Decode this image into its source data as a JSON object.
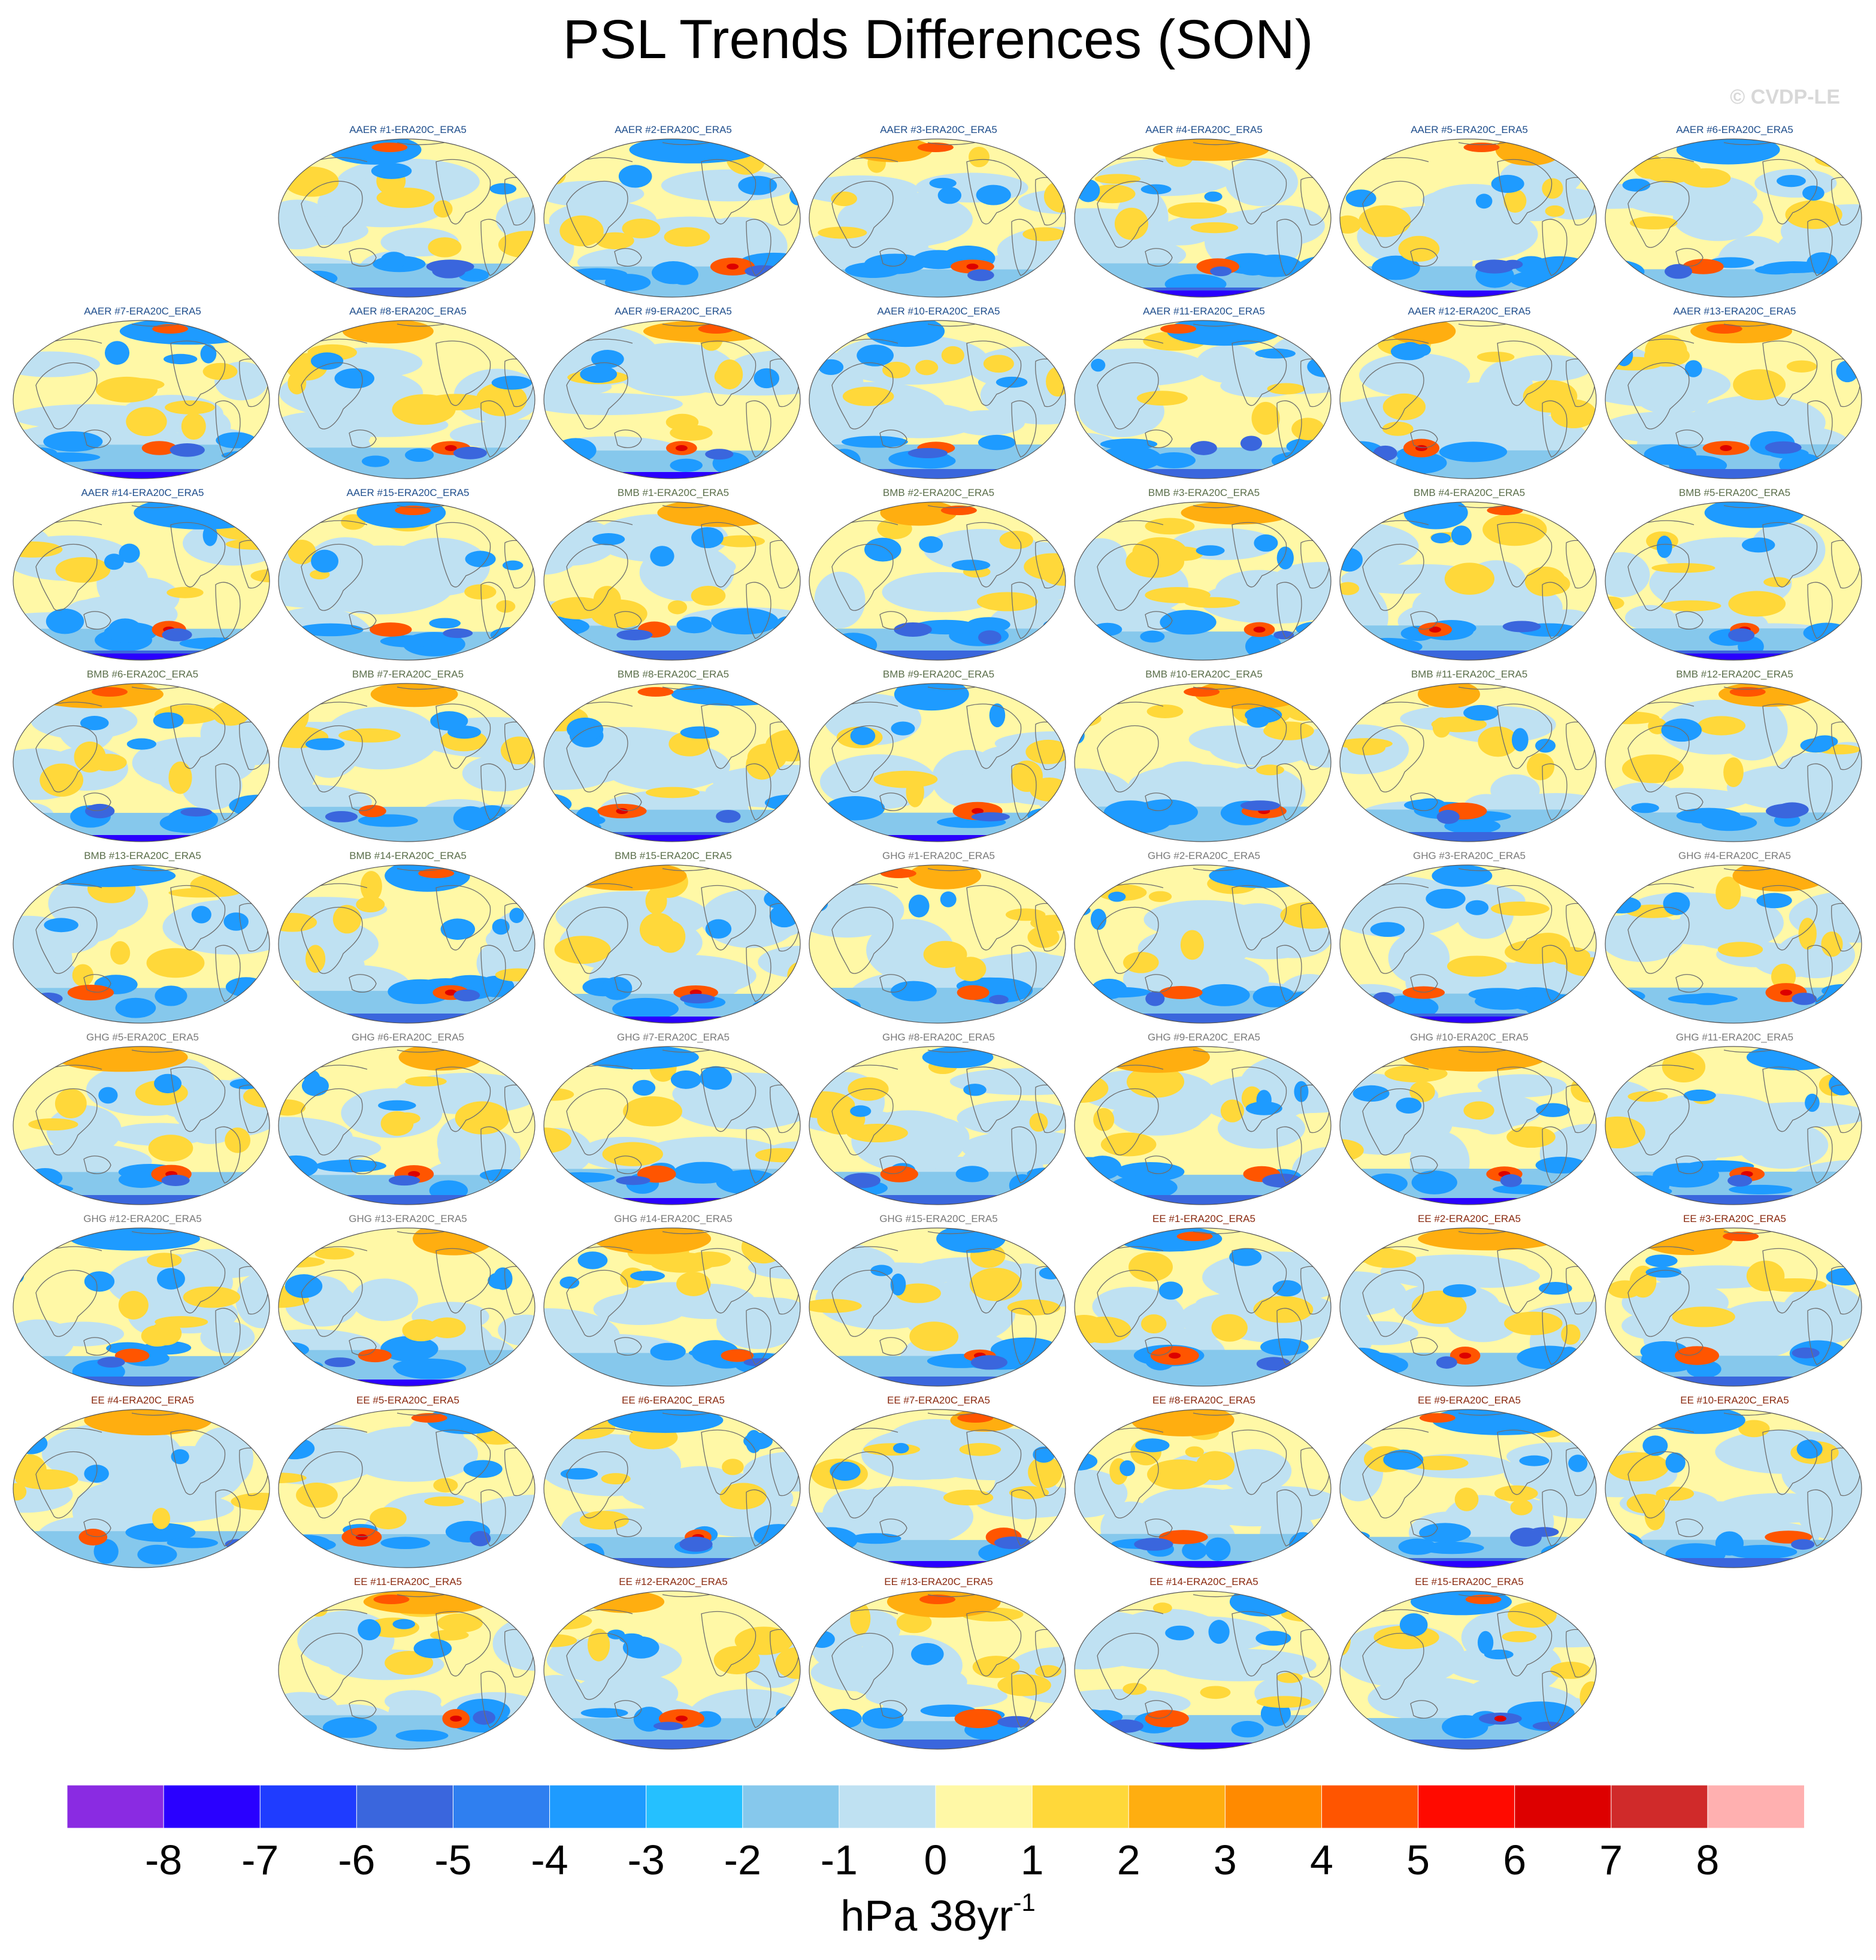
{
  "title": "PSL Trends Differences (SON)",
  "copyright": "© CVDP-LE",
  "panel_titles": [
    "AAER #1-ERA20C_ERA5",
    "AAER #2-ERA20C_ERA5",
    "AAER #3-ERA20C_ERA5",
    "AAER #4-ERA20C_ERA5",
    "AAER #5-ERA20C_ERA5",
    "AAER #6-ERA20C_ERA5",
    "AAER #7-ERA20C_ERA5",
    "AAER #8-ERA20C_ERA5",
    "AAER #9-ERA20C_ERA5",
    "AAER #10-ERA20C_ERA5",
    "AAER #11-ERA20C_ERA5",
    "AAER #12-ERA20C_ERA5",
    "AAER #13-ERA20C_ERA5",
    "AAER #14-ERA20C_ERA5",
    "AAER #15-ERA20C_ERA5",
    "BMB #1-ERA20C_ERA5",
    "BMB #2-ERA20C_ERA5",
    "BMB #3-ERA20C_ERA5",
    "BMB #4-ERA20C_ERA5",
    "BMB #5-ERA20C_ERA5",
    "BMB #6-ERA20C_ERA5",
    "BMB #7-ERA20C_ERA5",
    "BMB #8-ERA20C_ERA5",
    "BMB #9-ERA20C_ERA5",
    "BMB #10-ERA20C_ERA5",
    "BMB #11-ERA20C_ERA5",
    "BMB #12-ERA20C_ERA5",
    "BMB #13-ERA20C_ERA5",
    "BMB #14-ERA20C_ERA5",
    "BMB #15-ERA20C_ERA5",
    "GHG #1-ERA20C_ERA5",
    "GHG #2-ERA20C_ERA5",
    "GHG #3-ERA20C_ERA5",
    "GHG #4-ERA20C_ERA5",
    "GHG #5-ERA20C_ERA5",
    "GHG #6-ERA20C_ERA5",
    "GHG #7-ERA20C_ERA5",
    "GHG #8-ERA20C_ERA5",
    "GHG #9-ERA20C_ERA5",
    "GHG #10-ERA20C_ERA5",
    "GHG #11-ERA20C_ERA5",
    "GHG #12-ERA20C_ERA5",
    "GHG #13-ERA20C_ERA5",
    "GHG #14-ERA20C_ERA5",
    "GHG #15-ERA20C_ERA5",
    "EE #1-ERA20C_ERA5",
    "EE #2-ERA20C_ERA5",
    "EE #3-ERA20C_ERA5",
    "EE #4-ERA20C_ERA5",
    "EE #5-ERA20C_ERA5",
    "EE #6-ERA20C_ERA5",
    "EE #7-ERA20C_ERA5",
    "EE #8-ERA20C_ERA5",
    "EE #9-ERA20C_ERA5",
    "EE #10-ERA20C_ERA5",
    "EE #11-ERA20C_ERA5",
    "EE #12-ERA20C_ERA5",
    "EE #13-ERA20C_ERA5",
    "EE #14-ERA20C_ERA5",
    "EE #15-ERA20C_ERA5"
  ],
  "group_colors": {
    "AAER": "#1f4e8c",
    "BMB": "#5a6e4a",
    "GHG": "#7a7a7a",
    "EE": "#8a2a10"
  },
  "colorbar": {
    "tick_labels": [
      "-8",
      "-7",
      "-6",
      "-5",
      "-4",
      "-3",
      "-2",
      "-1",
      "0",
      "1",
      "2",
      "3",
      "4",
      "5",
      "6",
      "7",
      "8"
    ],
    "colors": [
      "#8a2be2",
      "#2a00ff",
      "#1f3cff",
      "#3a66dd",
      "#2f7ff0",
      "#1e9bff",
      "#25c0ff",
      "#86c8ec",
      "#bfe1f2",
      "#fff8a6",
      "#ffd83a",
      "#ffae10",
      "#ff8a00",
      "#ff5500",
      "#ff0a00",
      "#dd0000",
      "#d02a2a",
      "#ffb0b0"
    ],
    "units_main": "hPa 38yr",
    "units_sup": "-1"
  }
}
